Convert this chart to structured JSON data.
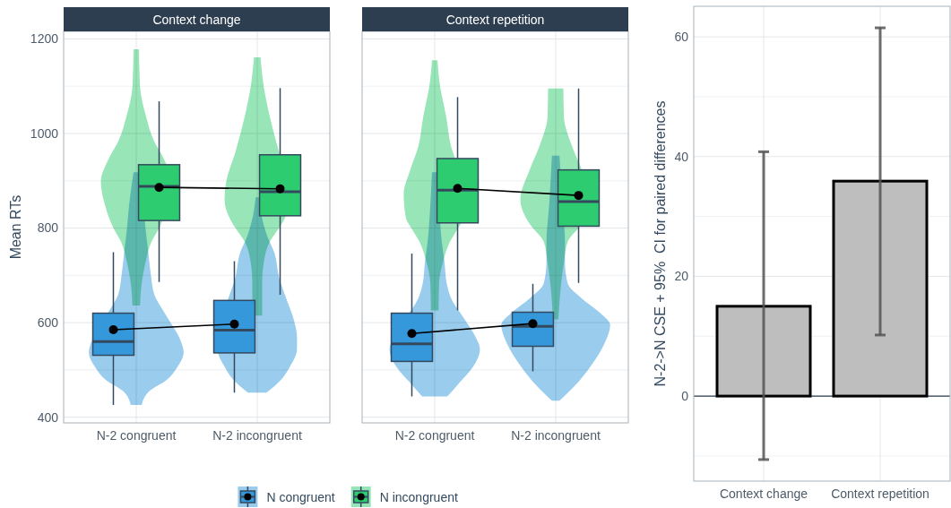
{
  "chart_data": [
    {
      "type": "box",
      "title": "Context change",
      "ylabel": "Mean RTs",
      "categories": [
        "N-2 congruent",
        "N-2 incongruent"
      ],
      "ylim": [
        388,
        1216
      ],
      "yticks": [
        400,
        {
          "value": 500,
          "label": null
        },
        600,
        {
          "value": 700,
          "label": null
        },
        800,
        {
          "value": 900,
          "label": null
        },
        1000,
        {
          "value": 1100,
          "label": null
        },
        1200
      ],
      "grid": true,
      "legend": "bottom",
      "series": [
        {
          "type": "box",
          "name": "N congruent",
          "color": "#3498db",
          "boxes": [
            {
              "low": 426,
              "q1": 531,
              "median": 560,
              "q3": 620,
              "high": 749,
              "mean": 585
            },
            {
              "low": 452,
              "q1": 536,
              "median": 584,
              "q3": 647,
              "high": 730,
              "mean": 597
            }
          ]
        },
        {
          "type": "box",
          "name": "N incongruent",
          "color": "#2ecc71",
          "boxes": [
            {
              "low": 686,
              "q1": 816,
              "median": 888,
              "q3": 934,
              "high": 1068,
              "mean": 886
            },
            {
              "low": 659,
              "q1": 826,
              "median": 877,
              "q3": 955,
              "high": 1096,
              "mean": 883
            }
          ]
        }
      ]
    },
    {
      "type": "box",
      "title": "Context repetition",
      "categories": [
        "N-2 congruent",
        "N-2 incongruent"
      ],
      "ylim": [
        388,
        1216
      ],
      "yticks": [
        400,
        {
          "value": 500,
          "label": null
        },
        600,
        {
          "value": 700,
          "label": null
        },
        800,
        {
          "value": 900,
          "label": null
        },
        1000,
        {
          "value": 1100,
          "label": null
        },
        1200
      ],
      "grid": true,
      "tick_labels": "x",
      "series": [
        {
          "type": "box",
          "color": "#3498db",
          "boxes": [
            {
              "low": 444,
              "q1": 518,
              "median": 555,
              "q3": 620,
              "high": 746,
              "mean": 577
            },
            {
              "low": 497,
              "q1": 550,
              "median": 592,
              "q3": 622,
              "high": 682,
              "mean": 598
            }
          ]
        },
        {
          "type": "box",
          "color": "#2ecc71",
          "boxes": [
            {
              "low": 626,
              "q1": 811,
              "median": 880,
              "q3": 947,
              "high": 1077,
              "mean": 884
            },
            {
              "low": 684,
              "q1": 804,
              "median": 856,
              "q3": 923,
              "high": 1095,
              "mean": 869
            }
          ]
        }
      ]
    },
    {
      "type": "bar",
      "ylabel": "N-2->N CSE + 95%  CI for paired differences",
      "categories": [
        "Context change",
        "Context repetition"
      ],
      "values": [
        15,
        35.9
      ],
      "errors": [
        [
          -10.6,
          40.8
        ],
        [
          10.2,
          61.5
        ]
      ],
      "color": "#bebebe",
      "ylim": [
        -14.2,
        65.1
      ],
      "yticks": [
        {
          "value": -10,
          "label": null
        },
        0,
        {
          "value": 10,
          "label": null
        },
        20,
        {
          "value": 30,
          "label": null
        },
        40,
        {
          "value": 50,
          "label": null
        },
        60
      ],
      "grid": true,
      "ref_lines": [
        {
          "axis": "y",
          "value": 0,
          "color": "#2c3e50"
        }
      ]
    }
  ]
}
